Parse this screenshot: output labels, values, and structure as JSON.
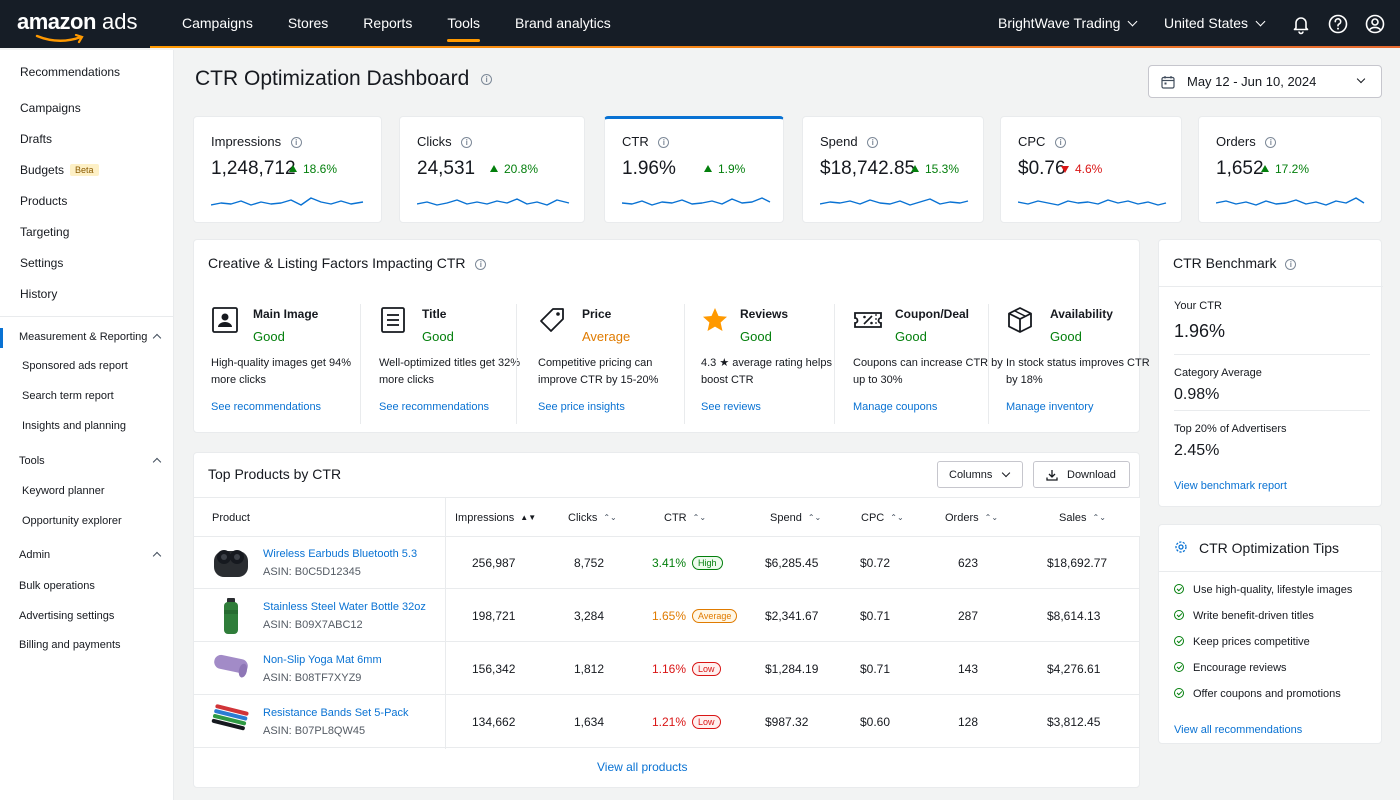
{
  "topbar": {
    "logo_bold": "amazon",
    "logo_light": " ads",
    "nav": [
      {
        "label": "Campaigns"
      },
      {
        "label": "Stores"
      },
      {
        "label": "Reports"
      },
      {
        "label": "Tools"
      },
      {
        "label": "Brand analytics"
      }
    ],
    "active_nav": "Tools",
    "account": "BrightWave Trading",
    "country": "United States",
    "icons": [
      "bell-icon",
      "help-icon",
      "user-icon"
    ]
  },
  "sidebar": {
    "items": [
      {
        "label": "Recommendations"
      },
      {
        "label": "Campaigns"
      },
      {
        "label": "Drafts"
      },
      {
        "label": "Budgets",
        "badge": "Beta"
      },
      {
        "label": "Products"
      },
      {
        "label": "Targeting"
      },
      {
        "label": "Settings"
      },
      {
        "label": "History"
      }
    ],
    "sections": [
      {
        "label": "Measurement & Reporting",
        "children": [
          "Sponsored ads report",
          "Search term report",
          "Insights and planning"
        ]
      },
      {
        "label": "Tools",
        "children": [
          "Keyword planner",
          "Opportunity explorer"
        ]
      },
      {
        "label": "Admin",
        "children": [
          "Bulk operations",
          "Advertising settings",
          "Billing and payments"
        ]
      }
    ]
  },
  "page": {
    "title": "CTR Optimization Dashboard",
    "date_range": "May 12 - Jun 10, 2024"
  },
  "kpis": [
    {
      "label": "Impressions",
      "value": "1,248,712",
      "delta": "18.6%",
      "direction": "up"
    },
    {
      "label": "Clicks",
      "value": "24,531",
      "delta": "20.8%",
      "direction": "up"
    },
    {
      "label": "CTR",
      "value": "1.96%",
      "delta": "1.9%",
      "direction": "up",
      "selected": true
    },
    {
      "label": "Spend",
      "value": "$18,742.85",
      "delta": "15.3%",
      "direction": "up"
    },
    {
      "label": "CPC",
      "value": "$0.76",
      "delta": "4.6%",
      "direction": "down"
    },
    {
      "label": "Orders",
      "value": "1,652",
      "delta": "17.2%",
      "direction": "up"
    }
  ],
  "factors": {
    "title": "Creative & Listing Factors Impacting CTR",
    "items": [
      {
        "name": "Main Image",
        "status": "Good",
        "desc": "High-quality images get 94% more clicks",
        "link": "See recommendations",
        "icon": "image-icon"
      },
      {
        "name": "Title",
        "status": "Good",
        "desc": "Well-optimized titles get 32% more clicks",
        "link": "See recommendations",
        "icon": "document-icon"
      },
      {
        "name": "Price",
        "status": "Average",
        "desc": "Competitive pricing can improve CTR by 15-20%",
        "link": "See price insights",
        "icon": "price-tag-icon"
      },
      {
        "name": "Reviews",
        "status": "Good",
        "desc": "4.3 ★  average rating helps boost CTR",
        "link": "See reviews",
        "icon": "star-icon"
      },
      {
        "name": "Coupon/Deal",
        "status": "Good",
        "desc": "Coupons can increase CTR by up to 30%",
        "link": "Manage coupons",
        "icon": "coupon-icon"
      },
      {
        "name": "Availability",
        "status": "Good",
        "desc": "In stock status improves CTR by 18%",
        "link": "Manage inventory",
        "icon": "box-icon"
      }
    ]
  },
  "products": {
    "title": "Top Products by CTR",
    "columns_btn": "Columns",
    "download_btn": "Download",
    "headers": [
      "Product",
      "Impressions",
      "Clicks",
      "CTR",
      "Spend",
      "CPC",
      "Orders",
      "Sales"
    ],
    "rows": [
      {
        "name": "Wireless Earbuds Bluetooth 5.3",
        "asin": "ASIN: B0C5D12345",
        "impressions": "256,987",
        "clicks": "8,752",
        "ctr": "3.41%",
        "tier": "High",
        "spend": "$6,285.45",
        "cpc": "$0.72",
        "orders": "623",
        "sales": "$18,692.77"
      },
      {
        "name": "Stainless Steel Water Bottle 32oz",
        "asin": "ASIN: B09X7ABC12",
        "impressions": "198,721",
        "clicks": "3,284",
        "ctr": "1.65%",
        "tier": "Average",
        "spend": "$2,341.67",
        "cpc": "$0.71",
        "orders": "287",
        "sales": "$8,614.13"
      },
      {
        "name": "Non-Slip Yoga Mat 6mm",
        "asin": "ASIN: B08TF7XYZ9",
        "impressions": "156,342",
        "clicks": "1,812",
        "ctr": "1.16%",
        "tier": "Low",
        "spend": "$1,284.19",
        "cpc": "$0.71",
        "orders": "143",
        "sales": "$4,276.61"
      },
      {
        "name": "Resistance Bands Set 5-Pack",
        "asin": "ASIN: B07PL8QW45",
        "impressions": "134,662",
        "clicks": "1,634",
        "ctr": "1.21%",
        "tier": "Low",
        "spend": "$987.32",
        "cpc": "$0.60",
        "orders": "128",
        "sales": "$3,812.45"
      }
    ],
    "view_all": "View all products"
  },
  "benchmark": {
    "title": "CTR Benchmark",
    "items": [
      {
        "label": "Your CTR",
        "value": "1.96%"
      },
      {
        "label": "Category Average",
        "value": "0.98%"
      },
      {
        "label": "Top 20% of Advertisers",
        "value": "2.45%"
      }
    ],
    "link": "View benchmark report"
  },
  "tips": {
    "title": "CTR Optimization Tips",
    "items": [
      "Use high-quality, lifestyle images",
      "Write benefit-driven titles",
      "Keep prices competitive",
      "Encourage reviews",
      "Offer coupons and promotions"
    ],
    "link": "View all recommendations"
  },
  "colors": {
    "good": "#037f0c",
    "average": "#e07b00",
    "low": "#d91515",
    "link": "#0972d3",
    "accent": "#ff9900",
    "topbar": "#161d26"
  }
}
